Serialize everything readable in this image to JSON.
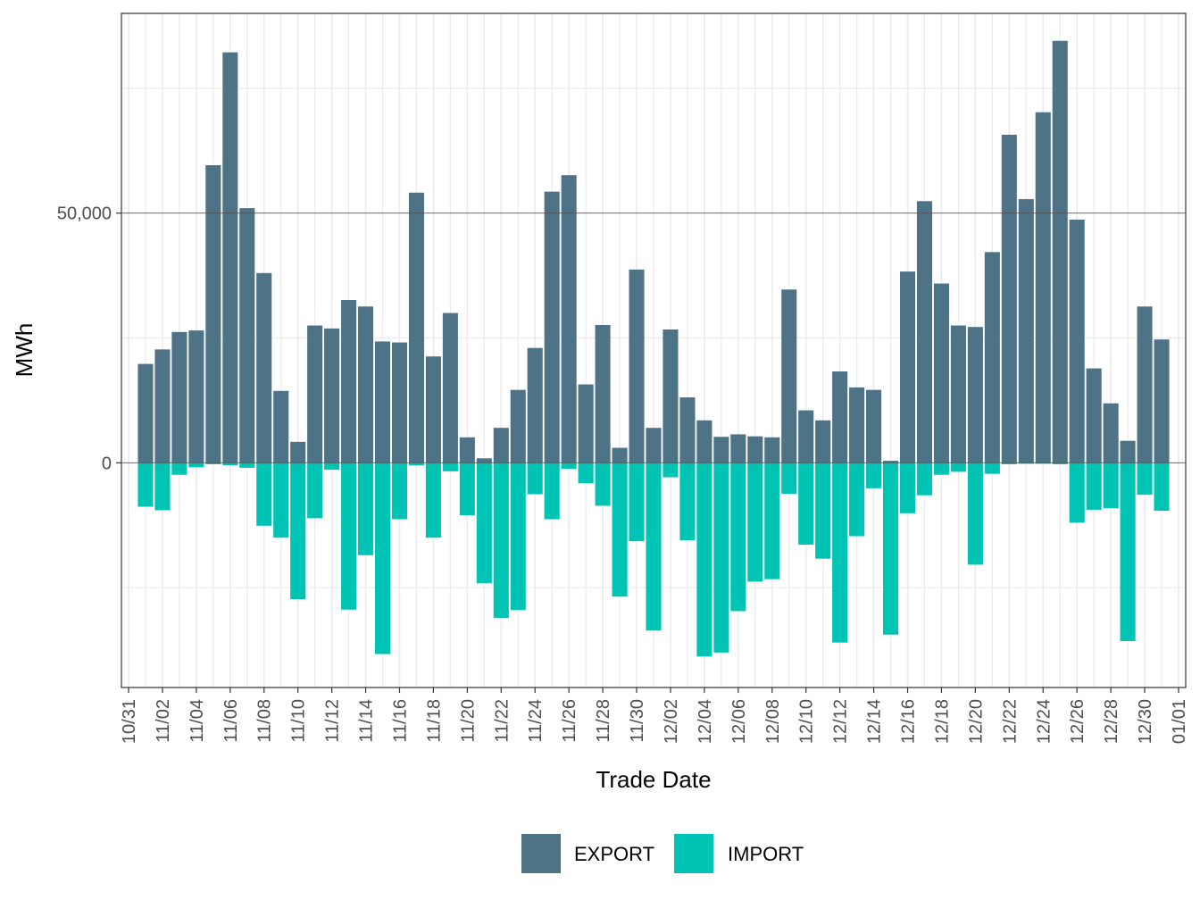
{
  "chart_data": {
    "type": "bar",
    "stacked": true,
    "xlabel": "Trade Date",
    "ylabel": "MWh",
    "ylim": [
      -45000,
      90000
    ],
    "y_ticks": [
      {
        "value": 0,
        "label": "0"
      },
      {
        "value": 50000,
        "label": "50,000"
      }
    ],
    "y_minor_gridlines": [
      -25000,
      25000,
      75000
    ],
    "x_tick_labels": [
      "10/31",
      "11/02",
      "11/04",
      "11/06",
      "11/08",
      "11/10",
      "11/12",
      "11/14",
      "11/16",
      "11/18",
      "11/20",
      "11/22",
      "11/24",
      "11/26",
      "11/28",
      "11/30",
      "12/02",
      "12/04",
      "12/06",
      "12/08",
      "12/10",
      "12/12",
      "12/14",
      "12/16",
      "12/18",
      "12/20",
      "12/22",
      "12/24",
      "12/26",
      "12/28",
      "12/30",
      "01/01"
    ],
    "categories": [
      "11/01",
      "11/02",
      "11/03",
      "11/04",
      "11/05",
      "11/06",
      "11/07",
      "11/08",
      "11/09",
      "11/10",
      "11/11",
      "11/12",
      "11/13",
      "11/14",
      "11/15",
      "11/16",
      "11/17",
      "11/18",
      "11/19",
      "11/20",
      "11/21",
      "11/22",
      "11/23",
      "11/24",
      "11/25",
      "11/26",
      "11/27",
      "11/28",
      "11/29",
      "11/30",
      "12/01",
      "12/02",
      "12/03",
      "12/04",
      "12/05",
      "12/06",
      "12/07",
      "12/08",
      "12/09",
      "12/10",
      "12/11",
      "12/12",
      "12/13",
      "12/14",
      "12/15",
      "12/16",
      "12/17",
      "12/18",
      "12/19",
      "12/20",
      "12/21",
      "12/22",
      "12/23",
      "12/24",
      "12/25",
      "12/26",
      "12/27",
      "12/28",
      "12/29",
      "12/30",
      "12/31"
    ],
    "series": [
      {
        "name": "EXPORT",
        "color": "#4e7387",
        "values": [
          19800,
          22700,
          26200,
          26500,
          59600,
          82200,
          51000,
          38000,
          14400,
          4200,
          27500,
          26900,
          32600,
          31300,
          24300,
          24100,
          54100,
          21300,
          30000,
          5100,
          900,
          7000,
          14600,
          23000,
          54300,
          57600,
          15700,
          27600,
          3000,
          38700,
          7000,
          26700,
          13100,
          8500,
          5200,
          5700,
          5300,
          5100,
          34700,
          10500,
          8500,
          18300,
          15100,
          14600,
          400,
          38300,
          52400,
          35900,
          27500,
          27200,
          42200,
          65700,
          52800,
          70200,
          84500,
          48700,
          18900,
          11900,
          4400,
          31300,
          24700
        ]
      },
      {
        "name": "IMPORT",
        "color": "#00c4b3",
        "values": [
          -8800,
          -9500,
          -2400,
          -900,
          -300,
          -500,
          -1000,
          -12600,
          -15000,
          -27300,
          -11100,
          -1400,
          -29400,
          -18500,
          -38300,
          -11300,
          -500,
          -15000,
          -1700,
          -10500,
          -24100,
          -31100,
          -29500,
          -6300,
          -11300,
          -1200,
          -4100,
          -8600,
          -26800,
          -15700,
          -33600,
          -2900,
          -15500,
          -38800,
          -38000,
          -29700,
          -23800,
          -23300,
          -6200,
          -16400,
          -19200,
          -36000,
          -14700,
          -5100,
          -34400,
          -10100,
          -6500,
          -2400,
          -1800,
          -20400,
          -2200,
          -300,
          -200,
          -200,
          -300,
          -12000,
          -9400,
          -9100,
          -35700,
          -6400,
          -9600
        ]
      }
    ]
  }
}
